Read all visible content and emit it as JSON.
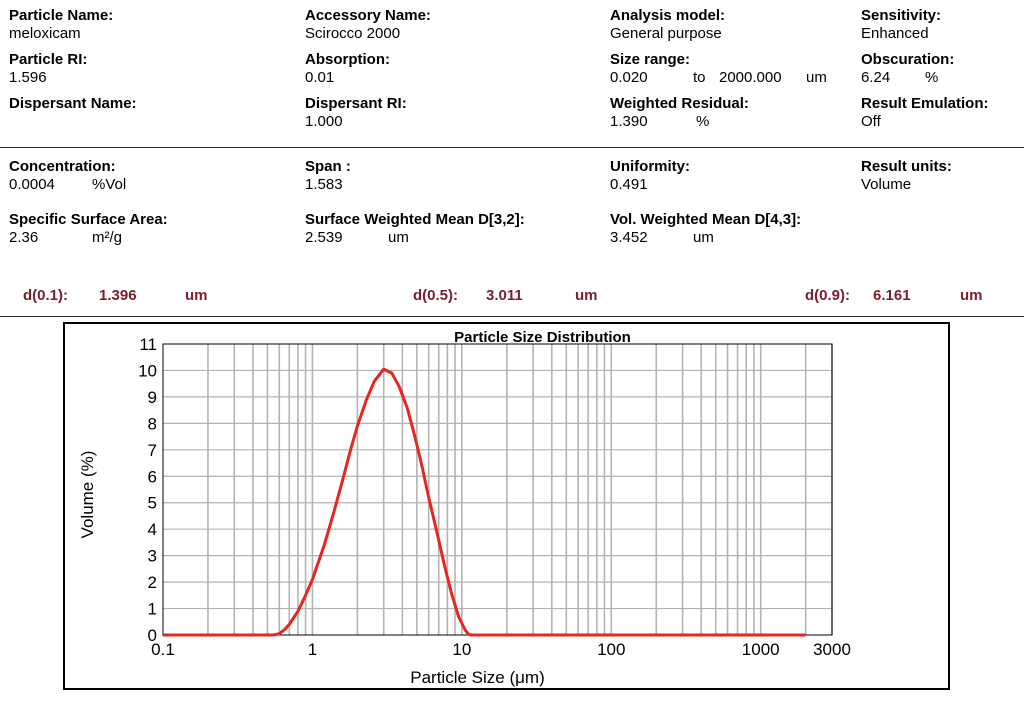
{
  "summary": {
    "particle_name": {
      "label": "Particle Name:",
      "value": "meloxicam"
    },
    "particle_ri": {
      "label": "Particle RI:",
      "value": "1.596"
    },
    "dispersant_name": {
      "label": "Dispersant Name:",
      "value": ""
    },
    "accessory_name": {
      "label": "Accessory Name:",
      "value": "Scirocco 2000"
    },
    "absorption": {
      "label": "Absorption:",
      "value": "0.01"
    },
    "dispersant_ri": {
      "label": "Dispersant RI:",
      "value": "1.000"
    },
    "analysis_model": {
      "label": "Analysis model:",
      "value": "General purpose"
    },
    "size_range": {
      "label": "Size range:",
      "from": "0.020",
      "to_word": "to",
      "to": "2000.000",
      "unit": "um"
    },
    "weighted_residual": {
      "label": "Weighted Residual:",
      "value": "1.390",
      "unit": "%"
    },
    "sensitivity": {
      "label": "Sensitivity:",
      "value": "Enhanced"
    },
    "obscuration": {
      "label": "Obscuration:",
      "value": "6.24",
      "unit": "%"
    },
    "result_emulation": {
      "label": "Result Emulation:",
      "value": "Off"
    }
  },
  "results": {
    "concentration": {
      "label": "Concentration:",
      "value": "0.0004",
      "unit": "%Vol"
    },
    "specific_surface_area": {
      "label": "Specific Surface Area:",
      "value": "2.36",
      "unit": "m²/g"
    },
    "span": {
      "label": "Span :",
      "value": "1.583"
    },
    "surface_weighted_mean": {
      "label": "Surface Weighted Mean D[3,2]:",
      "value": "2.539",
      "unit": "um"
    },
    "uniformity": {
      "label": "Uniformity:",
      "value": "0.491"
    },
    "vol_weighted_mean": {
      "label": "Vol. Weighted Mean D[4,3]:",
      "value": "3.452",
      "unit": "um"
    },
    "result_units": {
      "label": "Result units:",
      "value": "Volume"
    }
  },
  "percentiles": [
    {
      "label": "d(0.1):",
      "value": "1.396",
      "unit": "um"
    },
    {
      "label": "d(0.5):",
      "value": "3.011",
      "unit": "um"
    },
    {
      "label": "d(0.9):",
      "value": "6.161",
      "unit": "um"
    }
  ],
  "colors": {
    "curve": "#e8251f",
    "grid": "#b3b3b3",
    "label_dark_red": "#7a1f2b"
  },
  "chart_data": {
    "type": "line",
    "title": "Particle Size Distribution",
    "xlabel": "Particle Size (μm)",
    "ylabel": "Volume (%)",
    "xscale": "log",
    "xlim": [
      0.1,
      3000
    ],
    "ylim": [
      0,
      11
    ],
    "xticks": [
      0.1,
      1,
      10,
      100,
      1000,
      3000
    ],
    "xtick_labels": [
      "0.1",
      "1",
      "10",
      "100",
      "1000",
      "3000"
    ],
    "yticks": [
      0,
      1,
      2,
      3,
      4,
      5,
      6,
      7,
      8,
      9,
      10,
      11
    ],
    "ytick_labels": [
      "0",
      "1",
      "2",
      "3",
      "4",
      "5",
      "6",
      "7",
      "8",
      "9",
      "10",
      "11"
    ],
    "grid": true,
    "legend": "none",
    "series": [
      {
        "x": [
          0.1,
          0.2,
          0.4,
          0.55,
          0.6,
          0.65,
          0.7,
          0.8,
          0.9,
          1.0,
          1.2,
          1.4,
          1.6,
          1.8,
          2.0,
          2.3,
          2.6,
          3.0,
          3.4,
          3.8,
          4.3,
          4.8,
          5.4,
          6.0,
          6.8,
          7.6,
          8.5,
          9.5,
          10.5,
          11.0,
          11.5,
          12,
          20,
          100,
          500,
          1000,
          2000
        ],
        "y": [
          0,
          0,
          0,
          0,
          0.05,
          0.2,
          0.4,
          0.9,
          1.5,
          2.1,
          3.4,
          4.7,
          5.9,
          7.0,
          7.9,
          8.9,
          9.6,
          10.05,
          9.9,
          9.4,
          8.6,
          7.6,
          6.4,
          5.2,
          3.9,
          2.7,
          1.6,
          0.7,
          0.2,
          0.05,
          0,
          0,
          0,
          0,
          0,
          0,
          0
        ]
      }
    ]
  }
}
